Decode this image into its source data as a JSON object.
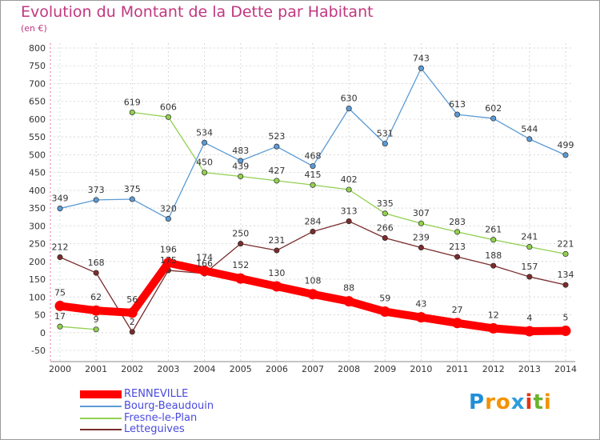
{
  "chart_data": {
    "type": "line",
    "title": "Evolution du Montant de la Dette par Habitant",
    "subtitle": "(en €)",
    "xlabel": "",
    "ylabel": "",
    "x": [
      "2000",
      "2001",
      "2002",
      "2003",
      "2004",
      "2005",
      "2006",
      "2007",
      "2008",
      "2009",
      "2010",
      "2011",
      "2012",
      "2013",
      "2014"
    ],
    "ylim": [
      -50,
      800
    ],
    "yticks": [
      -50,
      0,
      50,
      100,
      150,
      200,
      250,
      300,
      350,
      400,
      450,
      500,
      550,
      600,
      650,
      700,
      750,
      800
    ],
    "grid": true,
    "legend": "bottom-left",
    "series": [
      {
        "name": "RENNEVILLE",
        "color": "#ff0000",
        "values": [
          75,
          62,
          56,
          196,
          174,
          152,
          130,
          108,
          88,
          59,
          43,
          27,
          12,
          4,
          5
        ]
      },
      {
        "name": "Bourg-Beaudouin",
        "color": "#5b9bd5",
        "values": [
          349,
          373,
          375,
          320,
          534,
          483,
          523,
          468,
          630,
          531,
          743,
          613,
          602,
          544,
          499
        ]
      },
      {
        "name": "Fresne-le-Plan",
        "color": "#92d050",
        "values": [
          17,
          9,
          619,
          606,
          450,
          439,
          427,
          415,
          402,
          335,
          307,
          283,
          261,
          241,
          221
        ]
      },
      {
        "name": "Letteguives",
        "color": "#7b2c2c",
        "values": [
          212,
          168,
          2,
          175,
          166,
          250,
          231,
          284,
          313,
          266,
          239,
          213,
          188,
          157,
          134
        ]
      }
    ]
  },
  "logo": {
    "text": "Proxiti",
    "letters": [
      "P",
      "r",
      "o",
      "x",
      "i",
      "t",
      "i"
    ]
  }
}
